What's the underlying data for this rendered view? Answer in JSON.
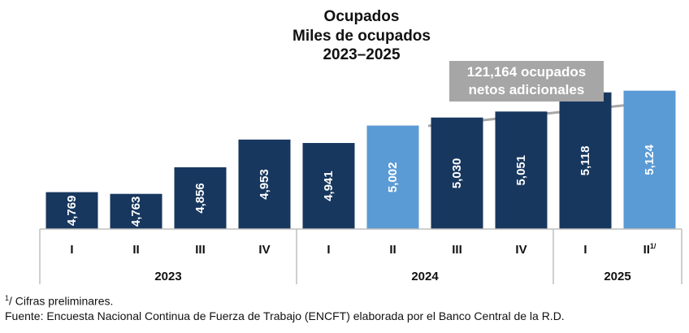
{
  "chart_data": {
    "type": "bar",
    "title": "Ocupados",
    "subtitle": "Miles de ocupados",
    "period": "2023–2025",
    "categories": [
      "I",
      "II",
      "III",
      "IV",
      "I",
      "II",
      "III",
      "IV",
      "I",
      "II"
    ],
    "category_suffix": [
      "",
      "",
      "",
      "",
      "",
      "",
      "",
      "",
      "",
      "1/"
    ],
    "years": [
      {
        "label": "2023",
        "count": 4
      },
      {
        "label": "2024",
        "count": 4
      },
      {
        "label": "2025",
        "count": 2
      }
    ],
    "values": [
      4769,
      4763,
      4856,
      4953,
      4941,
      5002,
      5030,
      5051,
      5118,
      5124
    ],
    "value_labels": [
      "4,769",
      "4,763",
      "4,856",
      "4,953",
      "4,941",
      "5,002",
      "5,030",
      "5,051",
      "5,118",
      "5,124"
    ],
    "highlighted": [
      false,
      false,
      false,
      false,
      false,
      true,
      false,
      false,
      false,
      true
    ],
    "ylim": [
      4640,
      5140
    ],
    "annotation": {
      "line1": "121,164 ocupados",
      "line2": "netos adicionales"
    },
    "colors": {
      "primary": "#17375e",
      "highlight": "#5b9bd5",
      "annotation": "#a6a6a6"
    }
  },
  "footnote": {
    "marker": "1",
    "text": "/ Cifras preliminares."
  },
  "source": "Fuente: Encuesta Nacional Continua de Fuerza de Trabajo (ENCFT) elaborada por el Banco Central de la R.D."
}
